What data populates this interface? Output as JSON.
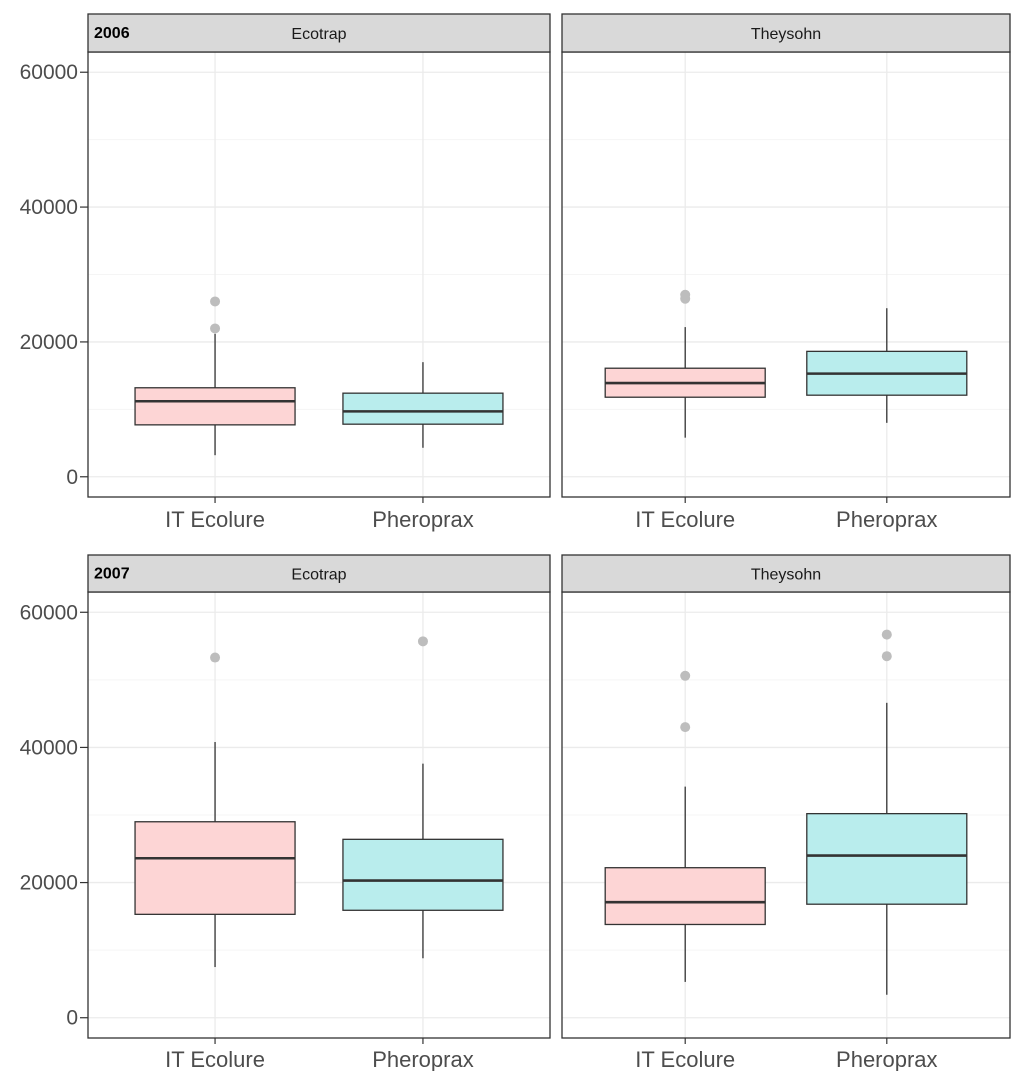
{
  "chart_data": {
    "type": "boxplot",
    "colors": {
      "IT Ecolure": "#fdd5d5",
      "Pheroprax": "#b9eded",
      "box_stroke": "#333333",
      "outlier": "#bdbdbd",
      "strip_fill": "#d9d9d9",
      "grid_major": "#ebebeb",
      "grid_minor": "#f5f5f5"
    },
    "y_ticks": [
      "0",
      "20000",
      "40000",
      "60000"
    ],
    "y_tick_values": [
      0,
      20000,
      40000,
      60000
    ],
    "ylim": [
      -3000,
      63000
    ],
    "categories": [
      "IT Ecolure",
      "Pheroprax"
    ],
    "grid": true,
    "years": [
      {
        "year": "2006",
        "panels": [
          {
            "title": "Ecotrap",
            "boxes": [
              {
                "category": "IT Ecolure",
                "min": 3200,
                "q1": 7700,
                "median": 11200,
                "q3": 13200,
                "max": 21200,
                "outliers": [
                  22000,
                  26000
                ]
              },
              {
                "category": "Pheroprax",
                "min": 4300,
                "q1": 7800,
                "median": 9700,
                "q3": 12400,
                "max": 17000,
                "outliers": []
              }
            ]
          },
          {
            "title": "Theysohn",
            "boxes": [
              {
                "category": "IT Ecolure",
                "min": 5800,
                "q1": 11800,
                "median": 13900,
                "q3": 16100,
                "max": 22200,
                "outliers": [
                  26400,
                  27000
                ]
              },
              {
                "category": "Pheroprax",
                "min": 8000,
                "q1": 12100,
                "median": 15300,
                "q3": 18600,
                "max": 25000,
                "outliers": []
              }
            ]
          }
        ]
      },
      {
        "year": "2007",
        "panels": [
          {
            "title": "Ecotrap",
            "boxes": [
              {
                "category": "IT Ecolure",
                "min": 7500,
                "q1": 15300,
                "median": 23600,
                "q3": 29000,
                "max": 40800,
                "outliers": [
                  53300
                ]
              },
              {
                "category": "Pheroprax",
                "min": 8800,
                "q1": 15900,
                "median": 20300,
                "q3": 26400,
                "max": 37600,
                "outliers": [
                  55700
                ]
              }
            ]
          },
          {
            "title": "Theysohn",
            "boxes": [
              {
                "category": "IT Ecolure",
                "min": 5300,
                "q1": 13800,
                "median": 17100,
                "q3": 22200,
                "max": 34200,
                "outliers": [
                  43000,
                  50600
                ]
              },
              {
                "category": "Pheroprax",
                "min": 3400,
                "q1": 16800,
                "median": 24000,
                "q3": 30200,
                "max": 46600,
                "outliers": [
                  53500,
                  56700
                ]
              }
            ]
          }
        ]
      }
    ]
  }
}
